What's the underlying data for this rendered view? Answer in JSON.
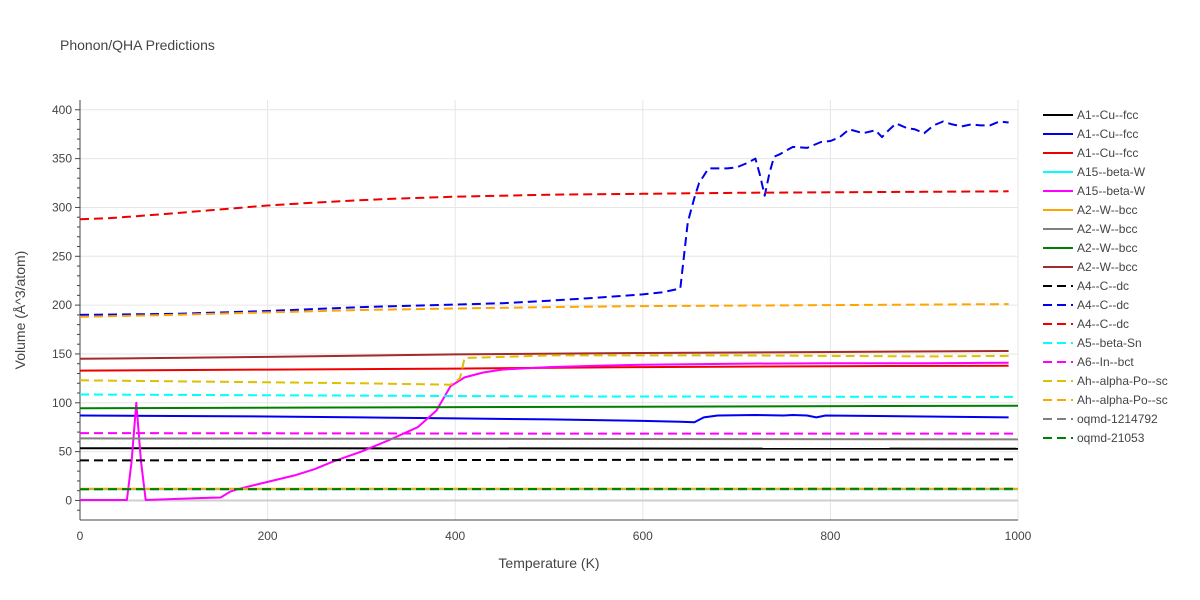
{
  "chart_data": {
    "type": "line",
    "title": "Phonon/QHA Predictions",
    "xlabel": "Temperature (K)",
    "ylabel": "Volume (Å^3/atom)",
    "xlim": [
      0,
      1000
    ],
    "ylim": [
      -20,
      410
    ],
    "xticks": [
      0,
      200,
      400,
      600,
      800,
      1000
    ],
    "yticks": [
      0,
      50,
      100,
      150,
      200,
      250,
      300,
      350,
      400
    ],
    "grid": true,
    "legend_position": "right",
    "series": [
      {
        "name": "A1--Cu--fcc",
        "color": "#000000",
        "dash": "solid",
        "x": [
          0,
          1000
        ],
        "y": [
          53.5,
          53.0
        ]
      },
      {
        "name": "A1--Cu--fcc",
        "color": "#0000ee",
        "dash": "solid",
        "x": [
          0,
          100,
          200,
          300,
          400,
          500,
          600,
          640,
          655,
          665,
          680,
          720,
          750,
          760,
          775,
          785,
          795,
          850,
          900,
          990
        ],
        "y": [
          87,
          86.5,
          86,
          85,
          84,
          83,
          81.5,
          80.5,
          80,
          85,
          87,
          87.5,
          87,
          87.5,
          87,
          85,
          87,
          86.5,
          86,
          85
        ]
      },
      {
        "name": "A1--Cu--fcc",
        "color": "#ee0000",
        "dash": "solid",
        "x": [
          0,
          200,
          400,
          600,
          800,
          990
        ],
        "y": [
          133,
          134,
          135,
          136.5,
          137.5,
          138
        ]
      },
      {
        "name": "A15--beta-W",
        "color": "#00ffff",
        "dash": "solid",
        "x": [
          0,
          1000
        ],
        "y": [
          11.5,
          11.5
        ]
      },
      {
        "name": "A15--beta-W",
        "color": "#ff00ff",
        "dash": "solid",
        "x": [
          0,
          50,
          55,
          60,
          65,
          70,
          100,
          130,
          150,
          160,
          170,
          200,
          230,
          250,
          270,
          300,
          330,
          360,
          380,
          395,
          410,
          430,
          450,
          500,
          550,
          600,
          700,
          800,
          900,
          990
        ],
        "y": [
          0.5,
          0.5,
          40,
          100,
          40,
          0.5,
          1.5,
          2.5,
          3,
          9,
          12,
          19,
          26,
          32,
          40,
          50,
          62,
          75,
          92,
          117,
          126,
          131,
          134,
          136.5,
          138,
          139,
          140,
          140.5,
          140.5,
          141
        ]
      },
      {
        "name": "A2--W--bcc",
        "color": "#ffa500",
        "dash": "solid",
        "x": [
          0,
          1000
        ],
        "y": [
          12,
          12
        ]
      },
      {
        "name": "A2--W--bcc",
        "color": "#808080",
        "dash": "solid",
        "x": [
          0,
          1000
        ],
        "y": [
          63.5,
          62.5
        ]
      },
      {
        "name": "A2--W--bcc",
        "color": "#008000",
        "dash": "solid",
        "x": [
          0,
          1000
        ],
        "y": [
          94.5,
          97
        ]
      },
      {
        "name": "A2--W--bcc",
        "color": "#a52a2a",
        "dash": "solid",
        "x": [
          0,
          200,
          400,
          600,
          800,
          990
        ],
        "y": [
          145,
          147,
          149.5,
          151,
          152,
          153
        ]
      },
      {
        "name": "A4--C--dc",
        "color": "#000000",
        "dash": "dash",
        "x": [
          0,
          500,
          1000
        ],
        "y": [
          41,
          41.5,
          42
        ]
      },
      {
        "name": "A4--C--dc",
        "color": "#0000ee",
        "dash": "dash",
        "x": [
          0,
          100,
          200,
          300,
          400,
          450,
          500,
          550,
          600,
          620,
          640,
          648,
          655,
          660,
          670,
          690,
          700,
          710,
          720,
          725,
          730,
          735,
          740,
          745,
          760,
          775,
          790,
          800,
          810,
          820,
          835,
          848,
          855,
          862,
          870,
          882,
          890,
          900,
          910,
          920,
          930,
          940,
          950,
          960,
          970,
          980,
          990
        ],
        "y": [
          190,
          191,
          194,
          198,
          200.5,
          202,
          204.5,
          207.5,
          211,
          213,
          217,
          285,
          310,
          325,
          340,
          340,
          341,
          345,
          350,
          333,
          312,
          335,
          352,
          354,
          362,
          361,
          367,
          368,
          372,
          380,
          376,
          379,
          372,
          379,
          386,
          381,
          380,
          376,
          384,
          388,
          385,
          383,
          385,
          384,
          384,
          388,
          387
        ]
      },
      {
        "name": "A4--C--dc",
        "color": "#ee0000",
        "dash": "dash",
        "x": [
          0,
          30,
          60,
          100,
          150,
          200,
          250,
          300,
          350,
          400,
          500,
          600,
          700,
          800,
          900,
          990
        ],
        "y": [
          288,
          289,
          291,
          294,
          298,
          302,
          305,
          307.5,
          309.5,
          311,
          313,
          314,
          315,
          315.5,
          316,
          316.5
        ]
      },
      {
        "name": "A5--beta-Sn",
        "color": "#00ffff",
        "dash": "dash",
        "x": [
          0,
          500,
          1000
        ],
        "y": [
          108.5,
          106.5,
          106
        ]
      },
      {
        "name": "A6--In--bct",
        "color": "#ff00ff",
        "dash": "dash",
        "x": [
          0,
          500,
          1000
        ],
        "y": [
          69,
          68.5,
          68.5
        ]
      },
      {
        "name": "Ah--alpha-Po--sc",
        "color": "#ddc000",
        "dash": "dash",
        "x": [
          0,
          100,
          200,
          300,
          395,
          405,
          410,
          450,
          500,
          600,
          700,
          800,
          900,
          990
        ],
        "y": [
          123,
          122,
          121,
          120,
          118.5,
          125,
          146,
          147,
          148.5,
          148.5,
          148.5,
          148,
          147.5,
          148
        ]
      },
      {
        "name": "Ah--alpha-Po--sc",
        "color": "#ffa500",
        "dash": "dash",
        "x": [
          0,
          100,
          200,
          300,
          400,
          500,
          600,
          700,
          800,
          900,
          990
        ],
        "y": [
          188,
          190,
          192.5,
          195,
          196.5,
          198,
          199,
          199.5,
          200,
          200.5,
          201
        ]
      },
      {
        "name": "oqmd-1214792",
        "color": "#808080",
        "dash": "dash",
        "x": [
          0,
          1000
        ],
        "y": [
          11.5,
          11.5
        ]
      },
      {
        "name": "oqmd-21053",
        "color": "#008000",
        "dash": "dash",
        "x": [
          0,
          1000
        ],
        "y": [
          11.5,
          12
        ]
      }
    ]
  }
}
